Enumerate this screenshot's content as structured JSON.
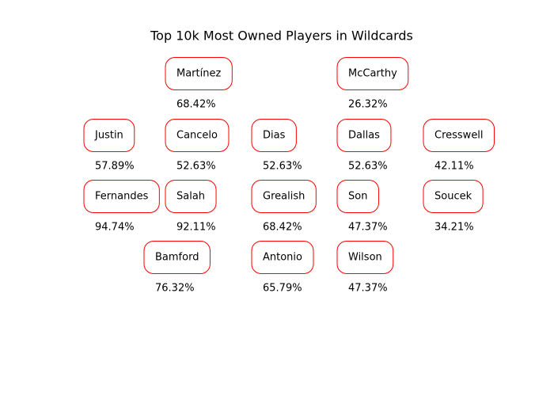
{
  "title": "Top 10k Most Owned Players in Wildcards",
  "rows": [
    {
      "players": [
        {
          "name": "Martínez",
          "ownership": "68.42%"
        },
        {
          "name": "McCarthy",
          "ownership": "26.32%"
        }
      ]
    },
    {
      "players": [
        {
          "name": "Justin",
          "ownership": "57.89%"
        },
        {
          "name": "Cancelo",
          "ownership": "52.63%"
        },
        {
          "name": "Dias",
          "ownership": "52.63%"
        },
        {
          "name": "Dallas",
          "ownership": "52.63%"
        },
        {
          "name": "Cresswell",
          "ownership": "42.11%"
        }
      ]
    },
    {
      "players": [
        {
          "name": "Fernandes",
          "ownership": "94.74%"
        },
        {
          "name": "Salah",
          "ownership": "92.11%"
        },
        {
          "name": "Grealish",
          "ownership": "68.42%"
        },
        {
          "name": "Son",
          "ownership": "47.37%"
        },
        {
          "name": "Soucek",
          "ownership": "34.21%"
        }
      ]
    },
    {
      "players": [
        {
          "name": "Bamford",
          "ownership": "76.32%"
        },
        {
          "name": "Antonio",
          "ownership": "65.79%"
        },
        {
          "name": "Wilson",
          "ownership": "47.37%"
        }
      ]
    }
  ]
}
